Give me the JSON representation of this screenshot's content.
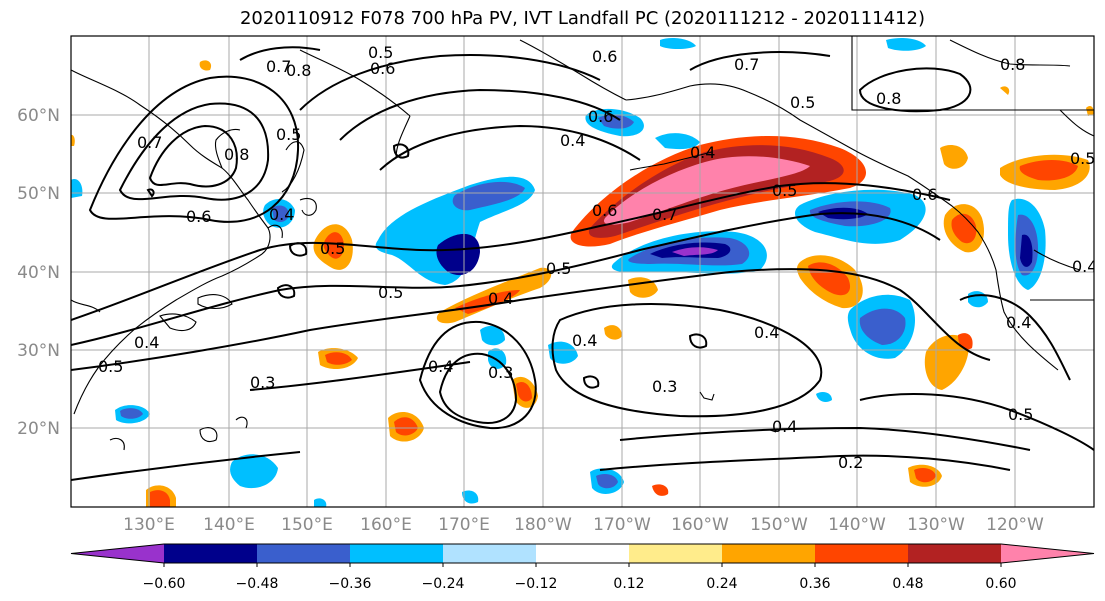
{
  "title": "2020110912 F078 700 hPa PV, IVT Landfall PC (2020111212 - 2020111412)",
  "lat_labels": [
    "60°N",
    "50°N",
    "40°N",
    "30°N",
    "20°N"
  ],
  "lon_labels": [
    "130°E",
    "140°E",
    "150°E",
    "160°E",
    "170°E",
    "180°W",
    "170°W",
    "160°W",
    "150°W",
    "140°W",
    "130°W",
    "120°W"
  ],
  "colorbar": {
    "tick_labels": [
      "−0.60",
      "−0.48",
      "−0.36",
      "−0.24",
      "−0.12",
      "0.12",
      "0.24",
      "0.36",
      "0.48",
      "0.60"
    ],
    "colors": [
      "#9932cc",
      "#00008b",
      "#3a5fcd",
      "#00bfff",
      "#b0e2ff",
      "#ffffff",
      "#ffec8b",
      "#ffa500",
      "#ff4500",
      "#b22222",
      "#ff82ab"
    ]
  },
  "contour_labels": [
    "0.5",
    "0.6",
    "0.7",
    "0.8",
    "0.5",
    "0.6",
    "0.8",
    "0.7",
    "0.6",
    "0.8",
    "0.4",
    "0.5",
    "0.6",
    "0.4",
    "0.4",
    "0.5",
    "0.6",
    "0.7",
    "0.5",
    "0.5",
    "0.4",
    "0.5",
    "0.4",
    "0.5",
    "0.3",
    "0.4",
    "0.4",
    "0.3",
    "0.4",
    "0.3",
    "0.4",
    "0.2",
    "0.4",
    "0.5",
    "0.7",
    "0.6",
    "0.5",
    "0.8",
    "0.4"
  ]
}
